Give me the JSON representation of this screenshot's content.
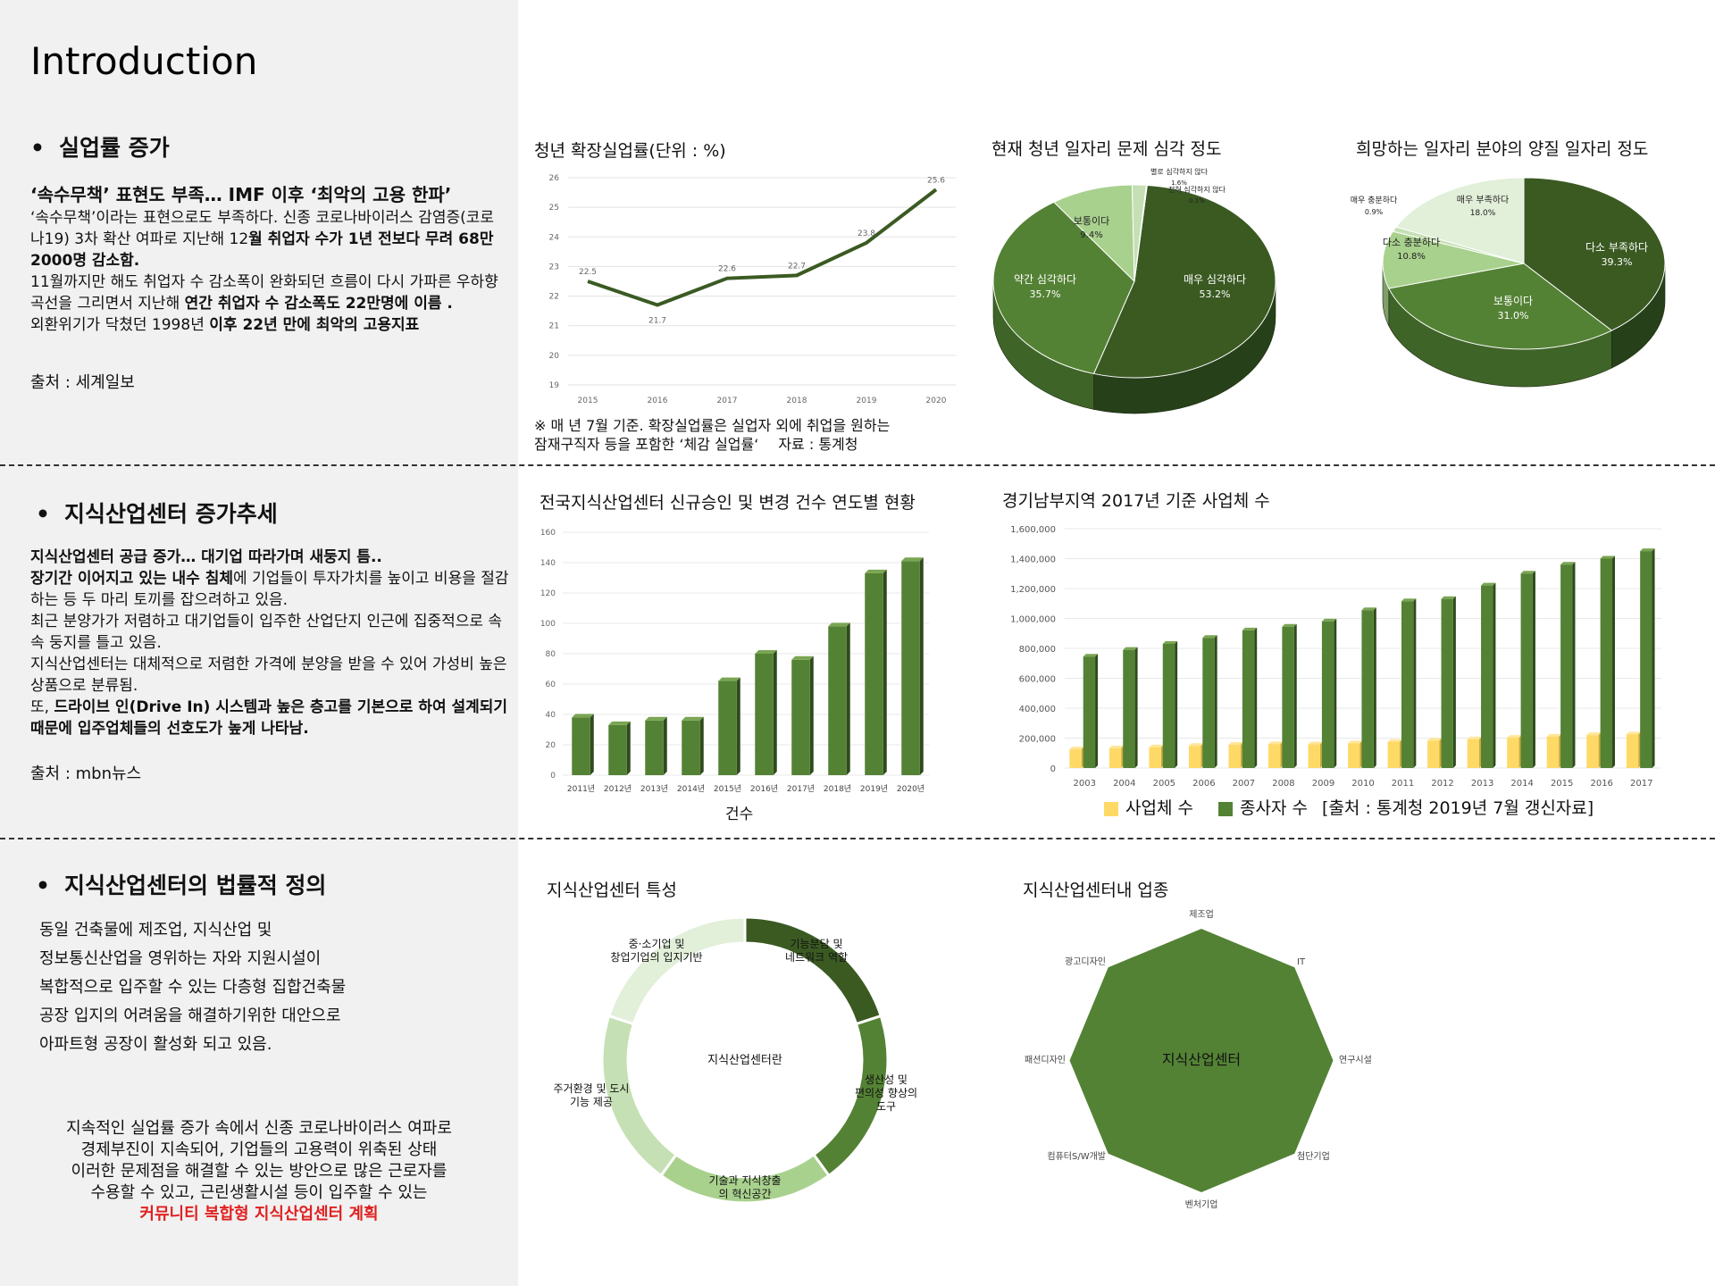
{
  "page": {
    "title": "Introduction"
  },
  "section1": {
    "heading": "실업률 증가",
    "headline": "‘속수무책’ 표현도 부족… IMF 이후 ‘최악의 고용 한파’",
    "p1a": "‘속수무책’이라는 표현으로도 부족하다. 신종 코로나바이러스 감염증(코로나19) 3차 확산 여파로 지난해 12",
    "p1b": "월 취업자 수가 1년 전보다 무려 68만2000명 감소함.",
    "p2a": "11월까지만 해도 취업자 수 감소폭이 완화되던 흐름이 다시 가파른 우하향 곡선을 그리면서 지난해 ",
    "p2b": "연간 취업자 수 감소폭도 22만명에 이름 .",
    "p3a": "외환위기가 닥쳤던 1998년 ",
    "p3b": "이후 22년 만에 최악의 고용지표",
    "source": "출처 : 세계일보"
  },
  "section2": {
    "heading": "지식산업센터 증가추세",
    "headline": "지식산업센터 공급 증가… 대기업 따라가며 새둥지 틈..",
    "p1a": "장기간 이어지고 있는 내수 침체",
    "p1b": "에 기업들이 투자가치를 높이고 비용을 절감하는 등 두 마리 토끼를 잡으려하고 있음.",
    "p2": "최근 분양가가 저렴하고 대기업들이 입주한 산업단지 인근에 집중적으로 속속 둥지를 틀고 있음.",
    "p3": "지식산업센터는 대체적으로 저렴한 가격에 분양을 받을 수 있어 가성비 높은 상품으로 분류됨.",
    "p4a": " 또, ",
    "p4b": "드라이브 인(Drive In) 시스템과 높은 층고를 기본으로 하여 설계되기 때문에 입주업체들의 선호도가 높게 나타남.",
    "source": "출처 : mbn뉴스"
  },
  "section3": {
    "heading": "지식산업센터의 법률적 정의",
    "lines": [
      "동일 건축물에 제조업, 지식산업 및",
      "정보통신산업을 영위하는 자와 지원시설이",
      "복합적으로 입주할 수 있는 다층형 집합건축물",
      "공장 입지의 어려움을 해결하기위한 대안으로",
      "아파트형 공장이 활성화 되고 있음."
    ],
    "conclusion": [
      "지속적인 실업률 증가 속에서 신종 코로나바이러스 여파로",
      "경제부진이 지속되어, 기업들의 고용력이 위축된 상태",
      "이러한 문제점을 해결할 수 있는 방안으로 많은 근로자를",
      "수용할 수 있고, 근린생활시설 등이 입주할 수 있는"
    ],
    "conclusion_highlight": "커뮤니티 복합형 지식산업센터 계획"
  },
  "colors": {
    "dark_green": "#3a5a22",
    "mid_green": "#548235",
    "light_green": "#a9d18e",
    "pale_green": "#e2efd9",
    "yellow": "#ffd966",
    "red": "#e02020"
  },
  "chart_data": [
    {
      "type": "line",
      "title": "청년 확장실업률(단위 : %)",
      "x": [
        2015,
        2016,
        2017,
        2018,
        2019,
        2020
      ],
      "series": [
        {
          "values": [
            22.5,
            21.7,
            22.6,
            22.7,
            23.8,
            25.6
          ]
        }
      ],
      "ylim": [
        19,
        26
      ],
      "yticks": [
        19,
        20,
        21,
        22,
        23,
        24,
        25,
        26
      ],
      "note1": "※ 매 년 7월 기준. 확장실업률은 실업자 외에 취업을 원하는",
      "note2": "잠재구직자 등을 포함한 ‘체감 실업률‘",
      "note3": "자료 : 통계청"
    },
    {
      "type": "pie",
      "title": "현재 청년 일자리 문제 심각 정도",
      "slices": [
        {
          "label": "매우 심각하다",
          "value": 53.2,
          "pct": "53.2%"
        },
        {
          "label": "약간 심각하다",
          "value": 35.7,
          "pct": "35.7%"
        },
        {
          "label": "보통이다",
          "value": 9.4,
          "pct": "9.4%"
        },
        {
          "label": "별로 심각하지 않다",
          "value": 1.6,
          "pct": "1.6%"
        },
        {
          "label": "전혀 심각하지 않다",
          "value": 0.1,
          "pct": "0.1%"
        }
      ]
    },
    {
      "type": "pie",
      "title": "희망하는 일자리 분야의 양질 일자리 정도",
      "slices": [
        {
          "label": "다소 부족하다",
          "value": 39.3,
          "pct": "39.3%"
        },
        {
          "label": "보통이다",
          "value": 31.0,
          "pct": "31.0%"
        },
        {
          "label": "다소 충분하다",
          "value": 10.8,
          "pct": "10.8%"
        },
        {
          "label": "매우 충분하다",
          "value": 0.9,
          "pct": "0.9%"
        },
        {
          "label": "매우 부족하다",
          "value": 18.0,
          "pct": "18.0%"
        }
      ]
    },
    {
      "type": "bar",
      "title": "전국지식산업센터 신규승인 및 변경 건수 연도별 현황",
      "categories": [
        "2011년",
        "2012년",
        "2013년",
        "2014년",
        "2015년",
        "2016년",
        "2017년",
        "2018년",
        "2019년",
        "2020년"
      ],
      "values": [
        38,
        33,
        36,
        36,
        62,
        80,
        76,
        98,
        133,
        141
      ],
      "ylim": [
        0,
        160
      ],
      "yticks": [
        0,
        20,
        40,
        60,
        80,
        100,
        120,
        140,
        160
      ],
      "xlabel": "건수"
    },
    {
      "type": "bar",
      "title": "경기남부지역 2017년 기준 사업체 수",
      "categories": [
        "2003",
        "2004",
        "2005",
        "2006",
        "2007",
        "2008",
        "2009",
        "2010",
        "2011",
        "2012",
        "2013",
        "2014",
        "2015",
        "2016",
        "2017"
      ],
      "series": [
        {
          "name": "사업체 수",
          "values": [
            125000,
            132000,
            138000,
            148000,
            155000,
            160000,
            158000,
            165000,
            175000,
            183000,
            192000,
            202000,
            210000,
            220000,
            225000
          ]
        },
        {
          "name": "종사자 수",
          "values": [
            745000,
            790000,
            830000,
            870000,
            920000,
            945000,
            980000,
            1055000,
            1115000,
            1130000,
            1220000,
            1300000,
            1360000,
            1400000,
            1450000
          ]
        }
      ],
      "ylim": [
        0,
        1600000
      ],
      "yticks": [
        "0",
        "200,000",
        "400,000",
        "600,000",
        "800,000",
        "1,000,000",
        "1,200,000",
        "1,400,000",
        "1,600,000"
      ],
      "legend_source": "[출처 : 통계청 2019년 7월 갱신자료]"
    }
  ],
  "diagram1": {
    "title": "지식산업센터 특성",
    "center": "지식산업센터란",
    "segments": [
      {
        "line1": "기능분담 및",
        "line2": "네트워크 역할"
      },
      {
        "line1": "생산성 및",
        "line2": "편의성 향상의",
        "line3": "도구"
      },
      {
        "line1": "기술과 지식창출",
        "line2": "의 혁신공간"
      },
      {
        "line1": "주거환경 및 도시",
        "line2": "기능 제공"
      },
      {
        "line1": "중·소기업 및",
        "line2": "창업기업의 입지기반"
      }
    ]
  },
  "diagram2": {
    "title": "지식산업센터내 업종",
    "center": "지식산업센터",
    "labels": [
      "제조업",
      "IT",
      "연구시설",
      "첨단기업",
      "벤처기업",
      "컴퓨터S/W개발",
      "패션디자인",
      "광고디자인"
    ]
  }
}
